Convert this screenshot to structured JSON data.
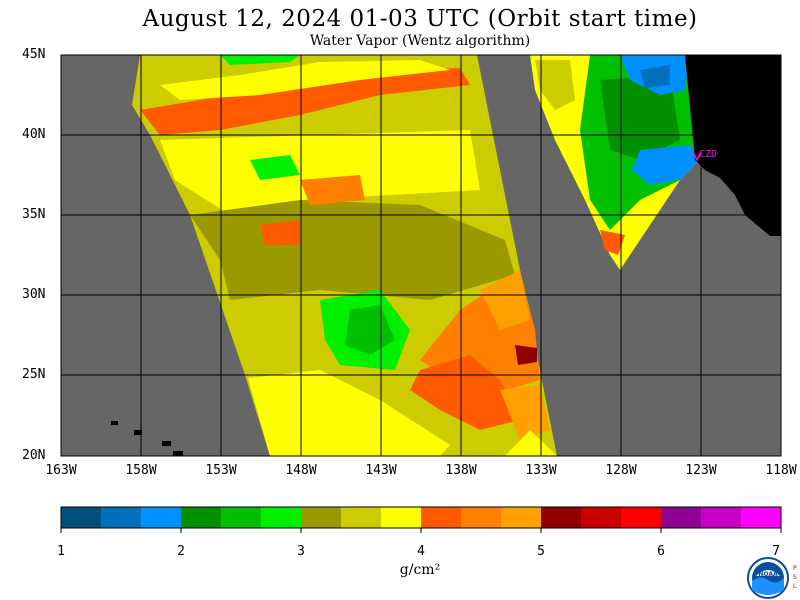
{
  "title": "August 12, 2024  01-03 UTC  (Orbit start time)",
  "subtitle": "Water Vapor (Wentz algorithm)",
  "lat_labels": [
    "45N",
    "40N",
    "35N",
    "30N",
    "25N",
    "20N"
  ],
  "lon_labels": [
    "163W",
    "158W",
    "153W",
    "148W",
    "143W",
    "138W",
    "133W",
    "128W",
    "123W",
    "118W"
  ],
  "station_label": "CZD",
  "colorbar": {
    "ticks": [
      "1",
      "2",
      "3",
      "4",
      "5",
      "6",
      "7"
    ],
    "unit": "g/cm²",
    "colors": [
      "#004f7a",
      "#0070bb",
      "#0090ff",
      "#009000",
      "#00c000",
      "#00f000",
      "#9a9a00",
      "#cccc00",
      "#ffff00",
      "#ff5a00",
      "#ff8000",
      "#ffa000",
      "#900000",
      "#c80000",
      "#ff0000",
      "#900090",
      "#c800c8",
      "#ff00ff"
    ]
  },
  "colors": {
    "no_data": "#666666",
    "land": "#000000",
    "grid": "#000000",
    "station": "#ff00ff"
  },
  "logo_text": "NOAA",
  "logo_side_text": "PSL"
}
